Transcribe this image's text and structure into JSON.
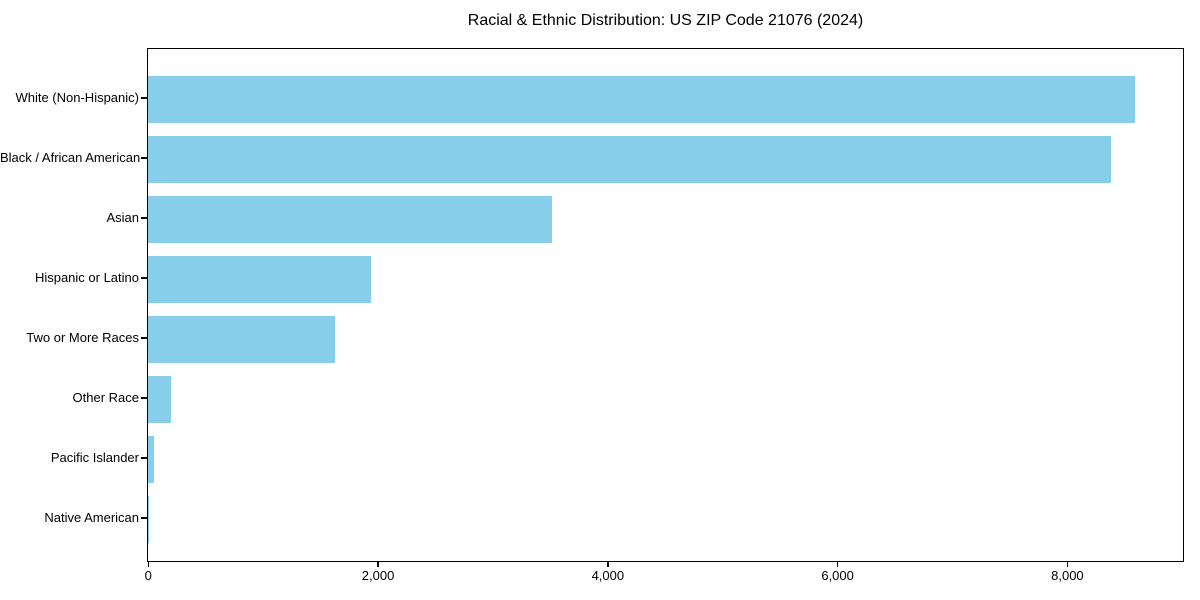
{
  "figure": {
    "background_color": "#ffffff",
    "text_color": "#000000"
  },
  "chart_data": {
    "type": "bar",
    "orientation": "horizontal",
    "title": "Racial & Ethnic Distribution: US ZIP Code 21076 (2024)",
    "categories": [
      "White (Non-Hispanic)",
      "Black / African American",
      "Asian",
      "Hispanic or Latino",
      "Two or More Races",
      "Other Race",
      "Pacific Islander",
      "Native American"
    ],
    "values": [
      8590,
      8385,
      3520,
      1940,
      1630,
      200,
      50,
      10
    ],
    "xlabel": "",
    "ylabel": "",
    "xlim": [
      0,
      9000
    ],
    "xticks": [
      0,
      2000,
      4000,
      6000,
      8000
    ],
    "xtick_labels": [
      "0",
      "2,000",
      "4,000",
      "6,000",
      "8,000"
    ],
    "bar_color": "#87CEEB",
    "grid": false,
    "legend": null
  }
}
